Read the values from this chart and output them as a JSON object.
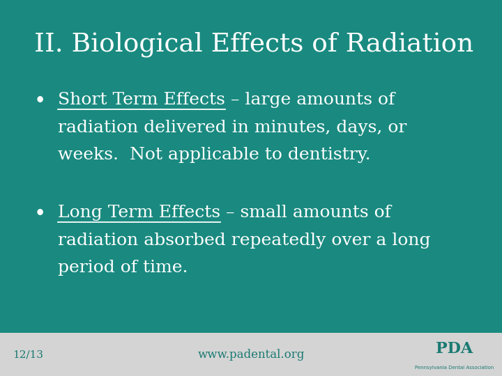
{
  "background_color": "#1a8a80",
  "footer_bg": "#d4d4d4",
  "title": "II. Biological Effects of Radiation",
  "title_color": "#ffffff",
  "title_fontsize": 27,
  "bullet1_underline": "Short Term Effects",
  "bullet1_rest_line1": " – large amounts of",
  "bullet1_line2": "radiation delivered in minutes, days, or",
  "bullet1_line3": "weeks.  Not applicable to dentistry.",
  "bullet2_underline": "Long Term Effects",
  "bullet2_rest_line1": " – small amounts of",
  "bullet2_line2": "radiation absorbed repeatedly over a long",
  "bullet2_line3": "period of time.",
  "text_color": "#ffffff",
  "bullet_fontsize": 18,
  "footer_left": "12/13",
  "footer_center": "www.padental.org",
  "footer_color": "#1a7a72",
  "footer_fontsize": 11,
  "pda_logo_text": "PDA",
  "pda_sub": "Pennsylvania Dental Association"
}
